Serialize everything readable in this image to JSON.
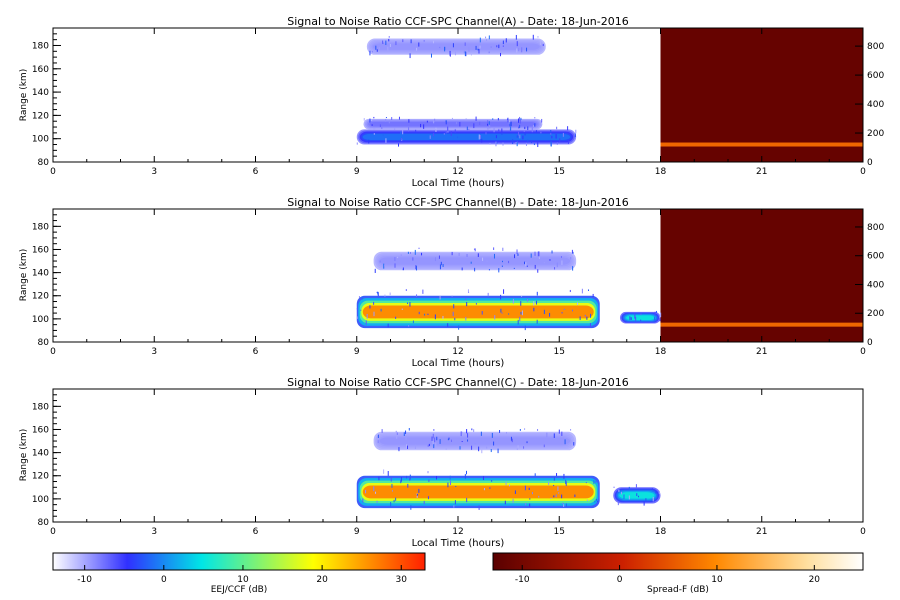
{
  "chart_data": [
    {
      "type": "heatmap",
      "title": "Signal to Noise Ratio CCF-SPC Channel(A) - Date: 18-Jun-2016",
      "xlabel": "Local Time (hours)",
      "ylabel": "Range (km)",
      "x_ticks": [
        "0",
        "3",
        "6",
        "9",
        "12",
        "15",
        "18",
        "21",
        "0"
      ],
      "xlim": [
        0,
        24
      ],
      "y_ticks": [
        "80",
        "100",
        "120",
        "140",
        "160",
        "180"
      ],
      "ylim": [
        80,
        195
      ],
      "y2_ticks": [
        "0",
        "200",
        "400",
        "600",
        "800"
      ],
      "y2lim": [
        0,
        925
      ],
      "eej_echoes": [
        {
          "t_start": 9.0,
          "t_end": 15.5,
          "range_low": 95,
          "range_high": 108,
          "snr_db": 2
        },
        {
          "t_start": 9.2,
          "t_end": 14.5,
          "range_low": 108,
          "range_high": 117,
          "snr_db": -6
        },
        {
          "t_start": 9.3,
          "t_end": 14.6,
          "range_low": 172,
          "range_high": 186,
          "snr_db": -8
        }
      ],
      "spread_f": {
        "t_start": 18.0,
        "t_end": 24.0,
        "background_db": -12,
        "layer_altitude": 95,
        "layer_db": 3
      }
    },
    {
      "type": "heatmap",
      "title": "Signal to Noise Ratio CCF-SPC Channel(B) - Date: 18-Jun-2016",
      "xlabel": "Local Time (hours)",
      "ylabel": "Range (km)",
      "x_ticks": [
        "0",
        "3",
        "6",
        "9",
        "12",
        "15",
        "18",
        "21",
        "0"
      ],
      "xlim": [
        0,
        24
      ],
      "y_ticks": [
        "80",
        "100",
        "120",
        "140",
        "160",
        "180"
      ],
      "ylim": [
        80,
        195
      ],
      "y2_ticks": [
        "0",
        "200",
        "400",
        "600",
        "800"
      ],
      "y2lim": [
        0,
        925
      ],
      "eej_echoes": [
        {
          "t_start": 9.0,
          "t_end": 16.2,
          "range_low": 92,
          "range_high": 120,
          "snr_db": 28
        },
        {
          "t_start": 16.8,
          "t_end": 18.0,
          "range_low": 96,
          "range_high": 106,
          "snr_db": 10
        },
        {
          "t_start": 9.5,
          "t_end": 15.5,
          "range_low": 142,
          "range_high": 158,
          "snr_db": -8
        }
      ],
      "spread_f": {
        "t_start": 18.0,
        "t_end": 24.0,
        "background_db": -12,
        "layer_altitude": 95,
        "layer_db": 3
      }
    },
    {
      "type": "heatmap",
      "title": "Signal to Noise Ratio CCF-SPC Channel(C) - Date: 18-Jun-2016",
      "xlabel": "Local Time (hours)",
      "ylabel": "Range (km)",
      "x_ticks": [
        "0",
        "3",
        "6",
        "9",
        "12",
        "15",
        "18",
        "21",
        "0"
      ],
      "xlim": [
        0,
        24
      ],
      "y_ticks": [
        "80",
        "100",
        "120",
        "140",
        "160",
        "180"
      ],
      "ylim": [
        80,
        195
      ],
      "eej_echoes": [
        {
          "t_start": 9.0,
          "t_end": 16.2,
          "range_low": 92,
          "range_high": 120,
          "snr_db": 28
        },
        {
          "t_start": 16.6,
          "t_end": 18.0,
          "range_low": 96,
          "range_high": 110,
          "snr_db": 10
        },
        {
          "t_start": 9.5,
          "t_end": 15.5,
          "range_low": 142,
          "range_high": 158,
          "snr_db": -8
        }
      ],
      "spread_f": null
    }
  ],
  "colorbars": [
    {
      "label": "EEJ/CCF (dB)",
      "ticks": [
        "-10",
        "0",
        "10",
        "20",
        "30"
      ],
      "range": [
        -14,
        33
      ],
      "colors": [
        "#ffffff",
        "#3030ff",
        "#00e6e6",
        "#ffff00",
        "#ff2000"
      ]
    },
    {
      "label": "Spread-F (dB)",
      "ticks": [
        "-10",
        "0",
        "10",
        "20"
      ],
      "range": [
        -13,
        25
      ],
      "colors": [
        "#5a0000",
        "#cc2000",
        "#ff8800",
        "#ffe0a0",
        "#ffffff"
      ]
    }
  ]
}
